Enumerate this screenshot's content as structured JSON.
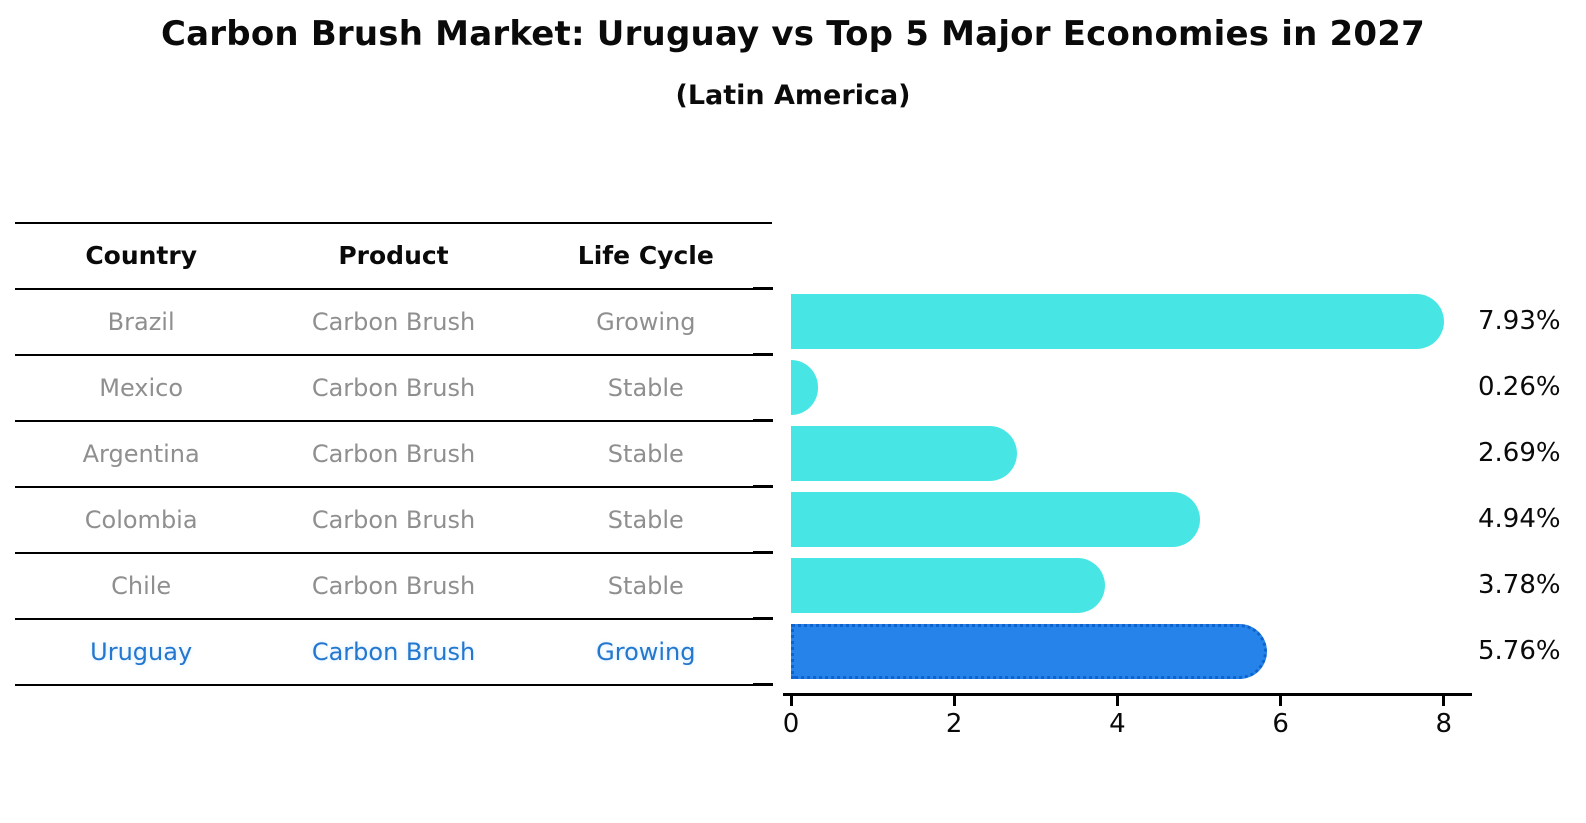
{
  "title": "Carbon Brush Market: Uruguay vs Top 5 Major Economies in 2027",
  "subtitle": "(Latin America)",
  "table": {
    "headers": [
      "Country",
      "Product",
      "Life Cycle"
    ],
    "rows": [
      {
        "country": "Brazil",
        "product": "Carbon Brush",
        "life_cycle": "Growing",
        "highlight": false
      },
      {
        "country": "Mexico",
        "product": "Carbon Brush",
        "life_cycle": "Stable",
        "highlight": false
      },
      {
        "country": "Argentina",
        "product": "Carbon Brush",
        "life_cycle": "Stable",
        "highlight": false
      },
      {
        "country": "Colombia",
        "product": "Carbon Brush",
        "life_cycle": "Stable",
        "highlight": false
      },
      {
        "country": "Chile",
        "product": "Carbon Brush",
        "life_cycle": "Stable",
        "highlight": false
      },
      {
        "country": "Uruguay",
        "product": "Carbon Brush",
        "life_cycle": "Growing",
        "highlight": true
      }
    ]
  },
  "chart_data": {
    "type": "bar",
    "orientation": "horizontal",
    "title": "Carbon Brush Market: Uruguay vs Top 5 Major Economies in 2027",
    "subtitle": "(Latin America)",
    "categories": [
      "Brazil",
      "Mexico",
      "Argentina",
      "Colombia",
      "Chile",
      "Uruguay"
    ],
    "values": [
      7.93,
      0.26,
      2.69,
      4.94,
      3.78,
      5.76
    ],
    "value_labels": [
      "7.93%",
      "0.26%",
      "2.69%",
      "4.94%",
      "3.78%",
      "5.76%"
    ],
    "unit": "%",
    "xlim": [
      0,
      8.4
    ],
    "xticks": [
      0,
      2,
      4,
      6,
      8
    ],
    "grid": false,
    "legend": false,
    "highlight_index": 5
  },
  "colors": {
    "bar-fill": "#47e6e4",
    "highlight-fill": "#2583e9",
    "highlight-border": "#0d63cf",
    "highlight-text": "#2377cf",
    "row-text": "#8f8f8f",
    "axis": "#000000"
  }
}
